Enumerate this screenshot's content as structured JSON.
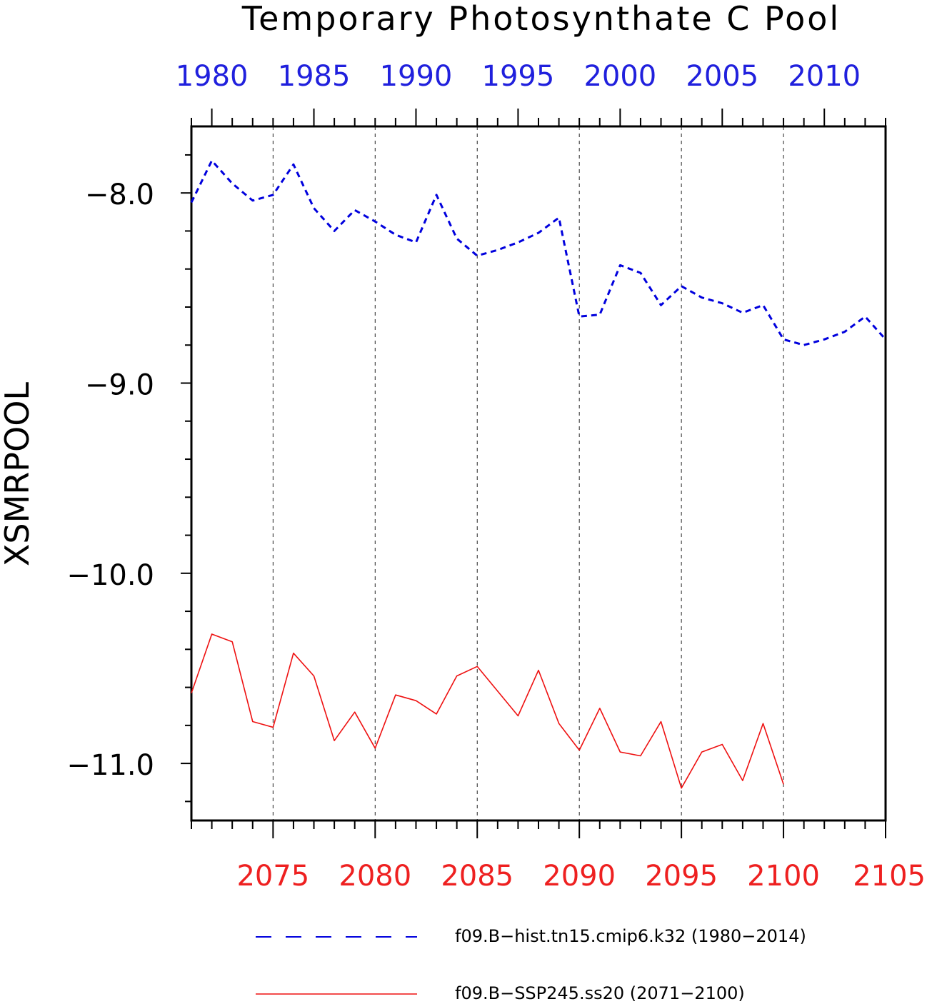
{
  "chart_data": {
    "type": "line",
    "title": "Temporary Photosynthate C Pool",
    "ylabel": "XSMRPOOL",
    "ylim": [
      -11.3,
      -7.65
    ],
    "y_ticks": [
      -8.0,
      -9.0,
      -10.0,
      -11.0
    ],
    "y_tick_labels": [
      "−8.0",
      "−9.0",
      "−10.0",
      "−11.0"
    ],
    "grid": "vertical dashed lines at bottom-axis major ticks",
    "legend_position": "bottom",
    "top_axis": {
      "color": "#2020dd",
      "range": [
        1979,
        2013
      ],
      "ticks": [
        1980,
        1985,
        1990,
        1995,
        2000,
        2005,
        2010
      ],
      "tick_labels": [
        "1980",
        "1985",
        "1990",
        "1995",
        "2000",
        "2005",
        "2010"
      ]
    },
    "bottom_axis": {
      "color": "#ee2020",
      "range": [
        2071,
        2105
      ],
      "ticks": [
        2075,
        2080,
        2085,
        2090,
        2095,
        2100,
        2105
      ],
      "tick_labels": [
        "2075",
        "2080",
        "2085",
        "2090",
        "2095",
        "2100",
        "2105"
      ]
    },
    "series": [
      {
        "name": "f09.B−hist.tn15.cmip6.k32 (1980−2014)",
        "axis": "top",
        "color": "#0000dd",
        "style": "dashed",
        "x": [
          1979,
          1980,
          1981,
          1982,
          1983,
          1984,
          1985,
          1986,
          1987,
          1988,
          1989,
          1990,
          1991,
          1992,
          1993,
          1994,
          1995,
          1996,
          1997,
          1998,
          1999,
          2000,
          2001,
          2002,
          2003,
          2004,
          2005,
          2006,
          2007,
          2008,
          2009,
          2010,
          2011,
          2012,
          2013
        ],
        "values": [
          -8.05,
          -7.83,
          -7.95,
          -8.04,
          -8.01,
          -7.85,
          -8.08,
          -8.2,
          -8.09,
          -8.15,
          -8.22,
          -8.26,
          -8.01,
          -8.24,
          -8.33,
          -8.3,
          -8.26,
          -8.21,
          -8.13,
          -8.65,
          -8.64,
          -8.38,
          -8.42,
          -8.59,
          -8.49,
          -8.55,
          -8.58,
          -8.63,
          -8.59,
          -8.77,
          -8.8,
          -8.77,
          -8.73,
          -8.65,
          -8.77
        ]
      },
      {
        "name": "f09.B−SSP245.ss20 (2071−2100)",
        "axis": "bottom",
        "color": "#ee1010",
        "style": "solid",
        "x": [
          2071,
          2072,
          2073,
          2074,
          2075,
          2076,
          2077,
          2078,
          2079,
          2080,
          2081,
          2082,
          2083,
          2084,
          2085,
          2086,
          2087,
          2088,
          2089,
          2090,
          2091,
          2092,
          2093,
          2094,
          2095,
          2096,
          2097,
          2098,
          2099,
          2100
        ],
        "values": [
          -10.63,
          -10.32,
          -10.36,
          -10.78,
          -10.81,
          -10.42,
          -10.54,
          -10.88,
          -10.73,
          -10.92,
          -10.64,
          -10.67,
          -10.74,
          -10.54,
          -10.49,
          -10.62,
          -10.75,
          -10.51,
          -10.79,
          -10.93,
          -10.71,
          -10.94,
          -10.96,
          -10.78,
          -11.13,
          -10.94,
          -10.9,
          -11.09,
          -10.79,
          -11.11
        ]
      }
    ]
  }
}
